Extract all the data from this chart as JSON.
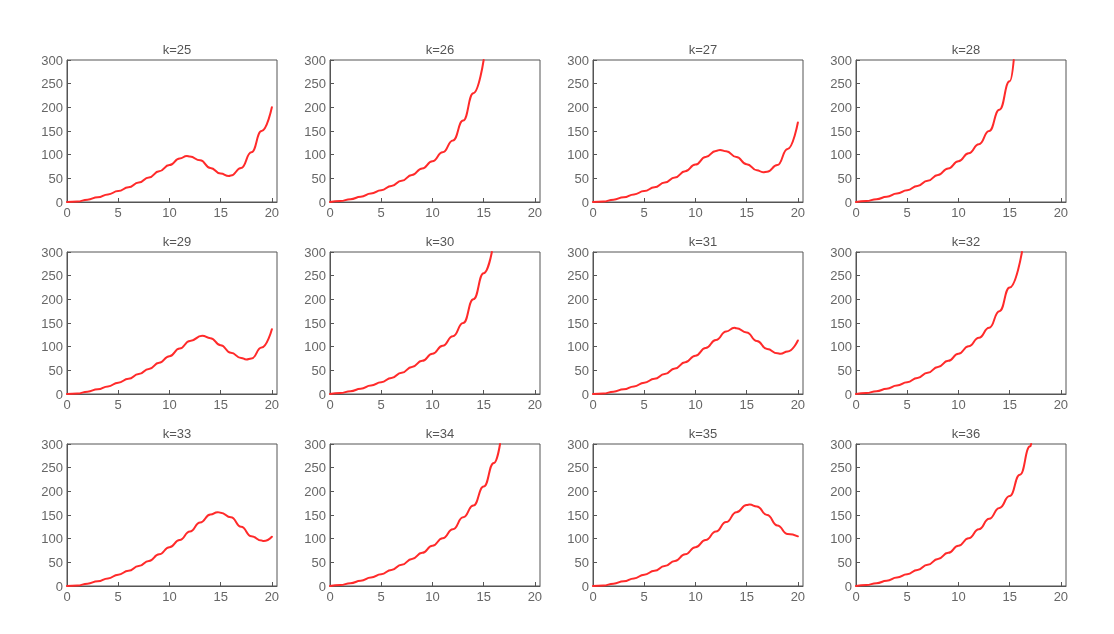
{
  "chart_data": [
    {
      "type": "line",
      "title": "k=25",
      "color": "#ff2a2a",
      "marker": "none",
      "xlim": [
        0,
        20.5
      ],
      "ylim": [
        0,
        300
      ],
      "xticks": [
        0,
        5,
        10,
        15,
        20
      ],
      "yticks": [
        0,
        50,
        100,
        150,
        200,
        250,
        300
      ],
      "x": [
        0,
        1,
        2,
        3,
        4,
        5,
        6,
        7,
        8,
        9,
        10,
        11,
        11.7,
        12,
        13,
        14,
        15,
        15.8,
        16,
        17,
        18,
        19,
        20
      ],
      "values": [
        0,
        1,
        5,
        10,
        16,
        23,
        31,
        41,
        52,
        65,
        78,
        92,
        97,
        96,
        88,
        72,
        60,
        55,
        56,
        72,
        105,
        150,
        200
      ]
    },
    {
      "type": "line",
      "title": "k=26",
      "color": "#ff2a2a",
      "marker": "none",
      "xlim": [
        0,
        20.5
      ],
      "ylim": [
        0,
        300
      ],
      "xticks": [
        0,
        5,
        10,
        15,
        20
      ],
      "yticks": [
        0,
        50,
        100,
        150,
        200,
        250,
        300
      ],
      "x": [
        0,
        1,
        2,
        3,
        4,
        5,
        6,
        7,
        8,
        9,
        10,
        11,
        12,
        13,
        14,
        15
      ],
      "values": [
        0,
        2,
        6,
        11,
        18,
        25,
        34,
        45,
        57,
        71,
        86,
        105,
        130,
        172,
        230,
        300
      ]
    },
    {
      "type": "line",
      "title": "k=27",
      "color": "#ff2a2a",
      "marker": "none",
      "xlim": [
        0,
        20.5
      ],
      "ylim": [
        0,
        300
      ],
      "xticks": [
        0,
        5,
        10,
        15,
        20
      ],
      "yticks": [
        0,
        50,
        100,
        150,
        200,
        250,
        300
      ],
      "x": [
        0,
        1,
        2,
        3,
        4,
        5,
        6,
        7,
        8,
        9,
        10,
        11,
        12,
        12.4,
        13,
        14,
        15,
        16,
        16.6,
        17,
        18,
        19,
        20
      ],
      "values": [
        0,
        1,
        5,
        10,
        16,
        23,
        31,
        41,
        52,
        65,
        79,
        95,
        108,
        110,
        107,
        95,
        80,
        67,
        63,
        64,
        78,
        112,
        168
      ]
    },
    {
      "type": "line",
      "title": "k=28",
      "color": "#ff2a2a",
      "marker": "none",
      "xlim": [
        0,
        20.5
      ],
      "ylim": [
        0,
        300
      ],
      "xticks": [
        0,
        5,
        10,
        15,
        20
      ],
      "yticks": [
        0,
        50,
        100,
        150,
        200,
        250,
        300
      ],
      "x": [
        0,
        1,
        2,
        3,
        4,
        5,
        6,
        7,
        8,
        9,
        10,
        11,
        12,
        13,
        14,
        15,
        15.4
      ],
      "values": [
        0,
        2,
        6,
        11,
        18,
        25,
        34,
        45,
        57,
        71,
        86,
        103,
        122,
        150,
        195,
        255,
        300
      ]
    },
    {
      "type": "line",
      "title": "k=29",
      "color": "#ff2a2a",
      "marker": "none",
      "xlim": [
        0,
        20.5
      ],
      "ylim": [
        0,
        300
      ],
      "xticks": [
        0,
        5,
        10,
        15,
        20
      ],
      "yticks": [
        0,
        50,
        100,
        150,
        200,
        250,
        300
      ],
      "x": [
        0,
        1,
        2,
        3,
        4,
        5,
        6,
        7,
        8,
        9,
        10,
        11,
        12,
        13.2,
        14,
        15,
        16,
        17,
        17.5,
        18,
        19,
        20
      ],
      "values": [
        0,
        1,
        5,
        10,
        16,
        24,
        32,
        42,
        53,
        66,
        80,
        96,
        112,
        123,
        118,
        103,
        87,
        76,
        73,
        75,
        98,
        137
      ]
    },
    {
      "type": "line",
      "title": "k=30",
      "color": "#ff2a2a",
      "marker": "none",
      "xlim": [
        0,
        20.5
      ],
      "ylim": [
        0,
        300
      ],
      "xticks": [
        0,
        5,
        10,
        15,
        20
      ],
      "yticks": [
        0,
        50,
        100,
        150,
        200,
        250,
        300
      ],
      "x": [
        0,
        1,
        2,
        3,
        4,
        5,
        6,
        7,
        8,
        9,
        10,
        11,
        12,
        13,
        14,
        15,
        15.8
      ],
      "values": [
        0,
        2,
        6,
        11,
        18,
        25,
        34,
        45,
        57,
        70,
        85,
        102,
        122,
        150,
        200,
        255,
        300
      ]
    },
    {
      "type": "line",
      "title": "k=31",
      "color": "#ff2a2a",
      "marker": "none",
      "xlim": [
        0,
        20.5
      ],
      "ylim": [
        0,
        300
      ],
      "xticks": [
        0,
        5,
        10,
        15,
        20
      ],
      "yticks": [
        0,
        50,
        100,
        150,
        200,
        250,
        300
      ],
      "x": [
        0,
        1,
        2,
        3,
        4,
        5,
        6,
        7,
        8,
        9,
        10,
        11,
        12,
        13,
        13.8,
        14,
        15,
        16,
        17,
        18,
        18.3,
        19,
        20
      ],
      "values": [
        0,
        1,
        5,
        10,
        16,
        24,
        32,
        42,
        54,
        67,
        81,
        97,
        114,
        132,
        140,
        139,
        130,
        112,
        95,
        86,
        85,
        90,
        113
      ]
    },
    {
      "type": "line",
      "title": "k=32",
      "color": "#ff2a2a",
      "marker": "none",
      "xlim": [
        0,
        20.5
      ],
      "ylim": [
        0,
        300
      ],
      "xticks": [
        0,
        5,
        10,
        15,
        20
      ],
      "yticks": [
        0,
        50,
        100,
        150,
        200,
        250,
        300
      ],
      "x": [
        0,
        1,
        2,
        3,
        4,
        5,
        6,
        7,
        8,
        9,
        10,
        11,
        12,
        13,
        14,
        15,
        16.2
      ],
      "values": [
        0,
        2,
        6,
        11,
        18,
        25,
        34,
        45,
        57,
        70,
        85,
        101,
        119,
        140,
        175,
        225,
        300
      ]
    },
    {
      "type": "line",
      "title": "k=33",
      "color": "#ff2a2a",
      "marker": "none",
      "xlim": [
        0,
        20.5
      ],
      "ylim": [
        0,
        300
      ],
      "xticks": [
        0,
        5,
        10,
        15,
        20
      ],
      "yticks": [
        0,
        50,
        100,
        150,
        200,
        250,
        300
      ],
      "x": [
        0,
        1,
        2,
        3,
        4,
        5,
        6,
        7,
        8,
        9,
        10,
        11,
        12,
        13,
        14,
        14.7,
        15,
        16,
        17,
        18,
        19,
        19.2,
        20
      ],
      "values": [
        0,
        1,
        5,
        10,
        16,
        24,
        32,
        42,
        53,
        67,
        82,
        97,
        115,
        134,
        151,
        156,
        155,
        145,
        125,
        105,
        96,
        95,
        104
      ]
    },
    {
      "type": "line",
      "title": "k=34",
      "color": "#ff2a2a",
      "marker": "none",
      "xlim": [
        0,
        20.5
      ],
      "ylim": [
        0,
        300
      ],
      "xticks": [
        0,
        5,
        10,
        15,
        20
      ],
      "yticks": [
        0,
        50,
        100,
        150,
        200,
        250,
        300
      ],
      "x": [
        0,
        1,
        2,
        3,
        4,
        5,
        6,
        7,
        8,
        9,
        10,
        11,
        12,
        13,
        14,
        15,
        16,
        16.6
      ],
      "values": [
        0,
        2,
        6,
        11,
        18,
        25,
        34,
        45,
        57,
        70,
        85,
        101,
        120,
        145,
        170,
        210,
        260,
        300
      ]
    },
    {
      "type": "line",
      "title": "k=35",
      "color": "#ff2a2a",
      "marker": "none",
      "xlim": [
        0,
        20.5
      ],
      "ylim": [
        0,
        300
      ],
      "xticks": [
        0,
        5,
        10,
        15,
        20
      ],
      "yticks": [
        0,
        50,
        100,
        150,
        200,
        250,
        300
      ],
      "x": [
        0,
        1,
        2,
        3,
        4,
        5,
        6,
        7,
        8,
        9,
        10,
        11,
        12,
        13,
        14,
        15,
        15.3,
        16,
        17,
        18,
        19,
        20
      ],
      "values": [
        0,
        1,
        5,
        10,
        16,
        24,
        32,
        42,
        53,
        67,
        82,
        97,
        115,
        135,
        156,
        171,
        172,
        168,
        150,
        128,
        110,
        105
      ]
    },
    {
      "type": "line",
      "title": "k=36",
      "color": "#ff2a2a",
      "marker": "none",
      "xlim": [
        0,
        20.5
      ],
      "ylim": [
        0,
        300
      ],
      "xticks": [
        0,
        5,
        10,
        15,
        20
      ],
      "yticks": [
        0,
        50,
        100,
        150,
        200,
        250,
        300
      ],
      "x": [
        0,
        1,
        2,
        3,
        4,
        5,
        6,
        7,
        8,
        9,
        10,
        11,
        12,
        13,
        14,
        15,
        16,
        17,
        17.1
      ],
      "values": [
        0,
        2,
        6,
        11,
        18,
        25,
        34,
        45,
        57,
        70,
        85,
        101,
        120,
        142,
        165,
        190,
        235,
        295,
        300
      ]
    }
  ]
}
